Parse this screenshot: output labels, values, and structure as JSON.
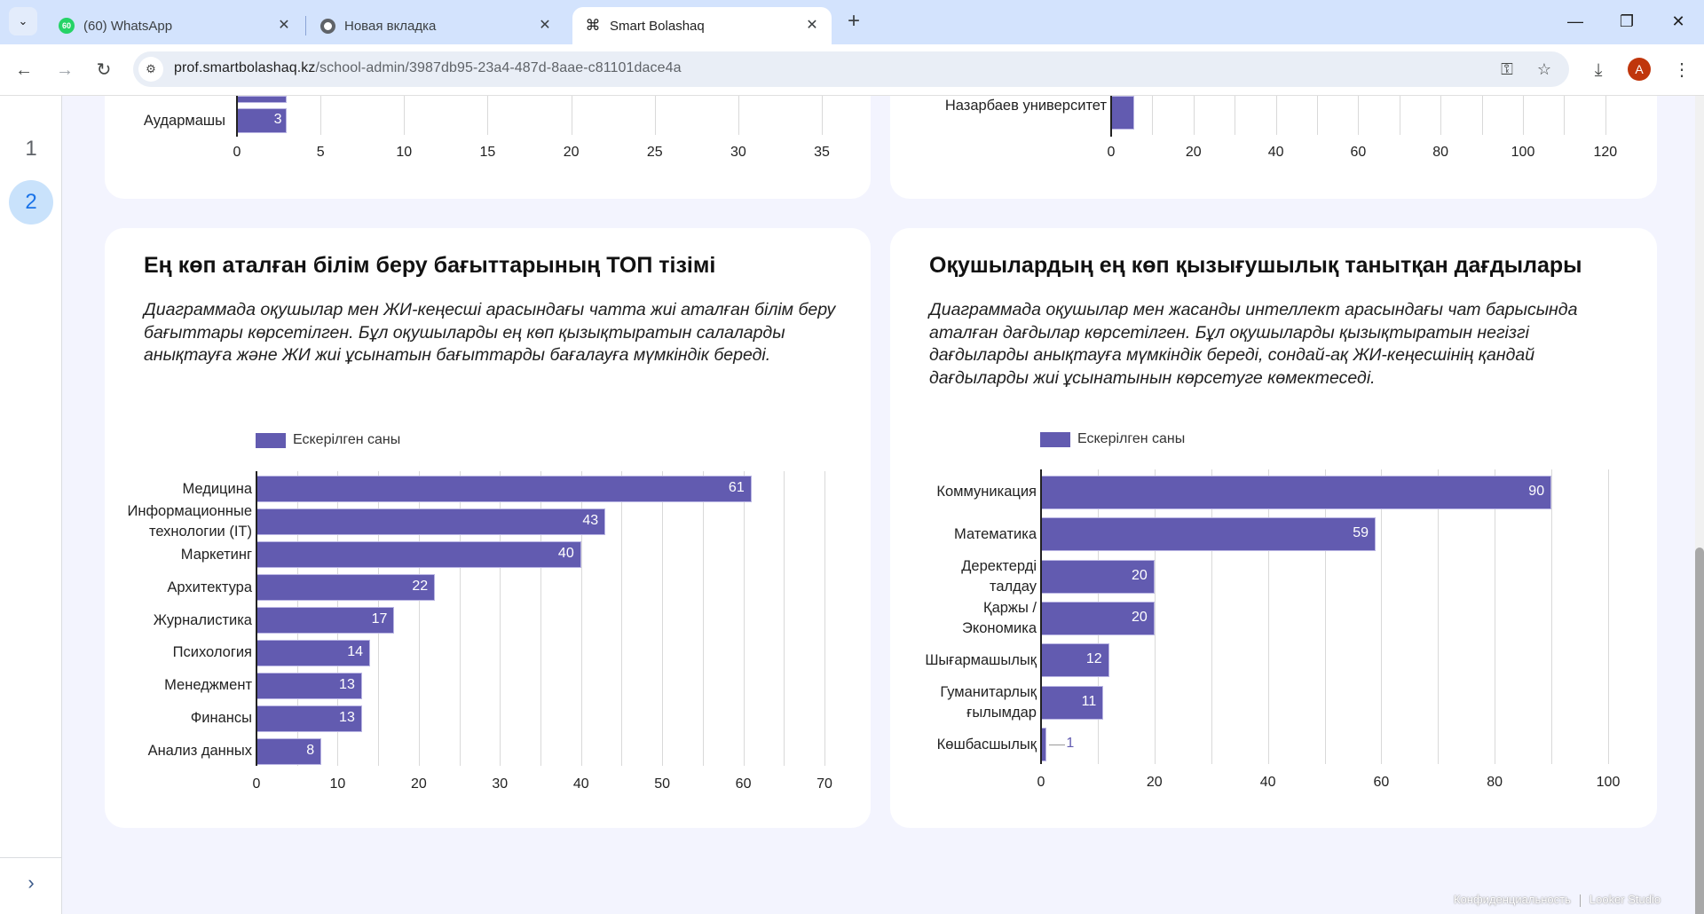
{
  "browser": {
    "tabs": [
      {
        "title": "(60) WhatsApp",
        "badge": "60",
        "icon": "whatsapp-icon",
        "active": false
      },
      {
        "title": "Новая вкладка",
        "icon": "chrome-icon",
        "active": false
      },
      {
        "title": "Smart Bolashaq",
        "icon": "command-icon",
        "active": true
      }
    ],
    "url_host": "prof.smartbolashaq.kz",
    "url_path": "/school-admin/3987db95-23a4-487d-8aae-c81101dace4a",
    "profile_initial": "A"
  },
  "sidebar": {
    "pages": [
      {
        "label": "1",
        "active": false
      },
      {
        "label": "2",
        "active": true
      }
    ]
  },
  "top_left_chart": {
    "visible_category": "Аудармашы",
    "visible_value": "3",
    "ticks": [
      "0",
      "5",
      "10",
      "15",
      "20",
      "25",
      "30",
      "35"
    ]
  },
  "top_right_chart": {
    "visible_category": "Назарбаев университет",
    "ticks": [
      "0",
      "20",
      "40",
      "60",
      "80",
      "100",
      "120"
    ]
  },
  "cards": [
    {
      "title": "Ең көп аталған білім беру бағыттарының ТОП тізімі",
      "description": "Диаграммада оқушылар мен ЖИ-кеңесші арасындағы чатта жиі аталған білім беру бағыттары көрсетілген. Бұл оқушыларды ең көп қызықтыратын салаларды анықтауға және ЖИ жиі ұсынатын бағыттарды бағалауға мүмкіндік береді.",
      "legend": "Ескерілген саны"
    },
    {
      "title": "Оқушылардың ең көп қызығушылық танытқан дағдылары",
      "description": "Диаграммада оқушылар мен жасанды интеллект арасындағы чат барысында аталған дағдылар көрсетілген. Бұл оқушыларды қызықтыратын негізгі дағдыларды анықтауға мүмкіндік береді, сондай-ақ ЖИ-кеңесшінің қандай дағдыларды жиі ұсынатынын көрсетуге көмектеседі.",
      "legend": "Ескерілген саны"
    }
  ],
  "chart_data": [
    {
      "type": "bar",
      "orientation": "horizontal",
      "title": "Ең көп аталған білім беру бағыттарының ТОП тізімі",
      "legend": "Ескерілген саны",
      "legend_position": "top-left",
      "categories": [
        "Медицина",
        "Информационные технологии (IT)",
        "Маркетинг",
        "Архитектура",
        "Журналистика",
        "Психология",
        "Менеджмент",
        "Финансы",
        "Анализ данных"
      ],
      "category_lines": [
        [
          "Медицина"
        ],
        [
          "Информационные",
          "технологии (IT)"
        ],
        [
          "Маркетинг"
        ],
        [
          "Архитектура"
        ],
        [
          "Журналистика"
        ],
        [
          "Психология"
        ],
        [
          "Менеджмент"
        ],
        [
          "Финансы"
        ],
        [
          "Анализ данных"
        ]
      ],
      "values": [
        61,
        43,
        40,
        22,
        17,
        14,
        13,
        13,
        8
      ],
      "xlim": [
        0,
        70
      ],
      "ticks": [
        0,
        10,
        20,
        30,
        40,
        50,
        60,
        70
      ],
      "grid": true,
      "color": "#625bb0"
    },
    {
      "type": "bar",
      "orientation": "horizontal",
      "title": "Оқушылардың ең көп қызығушылық танытқан дағдылары",
      "legend": "Ескерілген саны",
      "legend_position": "top-left",
      "categories": [
        "Коммуникация",
        "Математика",
        "Деректерді талдау",
        "Қаржы / Экономика",
        "Шығармашылық",
        "Гуманитарлық ғылымдар",
        "Көшбасшылық"
      ],
      "category_lines": [
        [
          "Коммуникация"
        ],
        [
          "Математика"
        ],
        [
          "Деректерді",
          "талдау"
        ],
        [
          "Қаржы /",
          "Экономика"
        ],
        [
          "Шығармашылық"
        ],
        [
          "Гуманитарлық",
          "ғылымдар"
        ],
        [
          "Көшбасшылық"
        ]
      ],
      "values": [
        90,
        59,
        20,
        20,
        12,
        11,
        1
      ],
      "xlim": [
        0,
        100
      ],
      "ticks": [
        0,
        20,
        40,
        60,
        80,
        100
      ],
      "grid": true,
      "color": "#625bb0"
    }
  ],
  "footer": {
    "privacy": "Конфиденциальность",
    "brand": "Looker Studio"
  }
}
